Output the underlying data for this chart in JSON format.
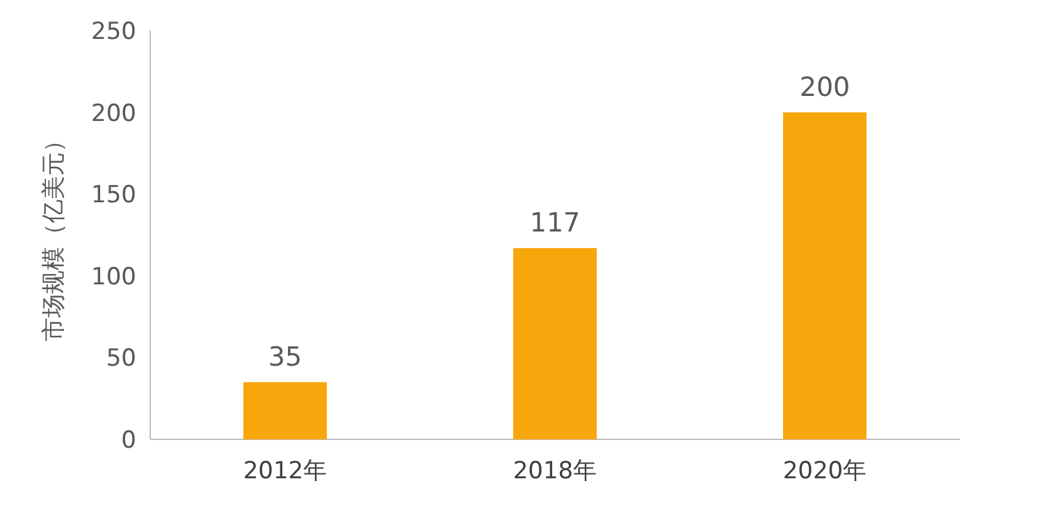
{
  "chart_data": {
    "type": "bar",
    "ylabel": "市场规模（亿美元）",
    "categories": [
      "2012年",
      "2018年",
      "2020年"
    ],
    "values": [
      35,
      117,
      200
    ],
    "color": "#f7a60c",
    "ylim": [
      0,
      250
    ],
    "yticks": [
      0,
      50,
      100,
      150,
      200,
      250
    ],
    "data_labels": true
  }
}
